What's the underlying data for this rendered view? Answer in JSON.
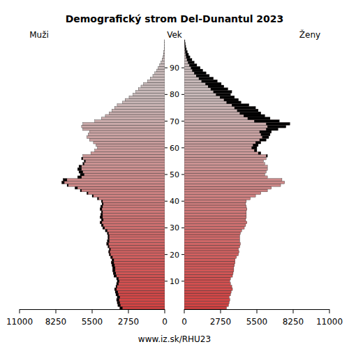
{
  "chart_data": {
    "type": "bar",
    "orientation": "horizontal",
    "title": "Demografický strom Del-Dunantul 2023",
    "y_label": "Vek",
    "footer": "www.iz.sk/RHU23",
    "categories": [
      null,
      null,
      null,
      null,
      null,
      null,
      null,
      null,
      null,
      null,
      "10",
      null,
      null,
      null,
      null,
      null,
      null,
      null,
      null,
      null,
      "20",
      null,
      null,
      null,
      null,
      null,
      null,
      null,
      null,
      null,
      "30",
      null,
      null,
      null,
      null,
      null,
      null,
      null,
      null,
      null,
      "40",
      null,
      null,
      null,
      null,
      null,
      null,
      null,
      null,
      null,
      "50",
      null,
      null,
      null,
      null,
      null,
      null,
      null,
      null,
      null,
      "60",
      null,
      null,
      null,
      null,
      null,
      null,
      null,
      null,
      null,
      "70",
      null,
      null,
      null,
      null,
      null,
      null,
      null,
      null,
      null,
      "80",
      null,
      null,
      null,
      null,
      null,
      null,
      null,
      null,
      null,
      "90",
      null,
      null,
      null,
      null,
      null,
      null,
      null,
      null,
      null,
      null
    ],
    "series": [
      {
        "name": "Muži",
        "values": [
          3400,
          3550,
          3600,
          3650,
          3600,
          3700,
          3750,
          3800,
          3700,
          3650,
          3600,
          3650,
          3850,
          3900,
          3950,
          3950,
          4000,
          4050,
          4000,
          4100,
          4200,
          4250,
          4200,
          4300,
          4400,
          4350,
          4300,
          4300,
          4350,
          4500,
          4700,
          4800,
          4900,
          4800,
          4900,
          4850,
          4800,
          4900,
          4850,
          4750,
          4800,
          5100,
          5500,
          5900,
          6400,
          6800,
          7400,
          7800,
          7700,
          6600,
          6400,
          6500,
          6600,
          6500,
          6200,
          6100,
          6300,
          6200,
          5600,
          5300,
          5100,
          5200,
          5400,
          5700,
          5900,
          5800,
          5700,
          6200,
          6300,
          6200,
          5300,
          4800,
          4500,
          4200,
          4000,
          3800,
          3600,
          3200,
          3000,
          2700,
          2400,
          2200,
          2000,
          1800,
          1600,
          1300,
          1100,
          900,
          750,
          600,
          500,
          380,
          280,
          200,
          140,
          100,
          70,
          45,
          30,
          20,
          15
        ]
      },
      {
        "name": "Ženy",
        "values": [
          3200,
          3350,
          3400,
          3450,
          3400,
          3500,
          3550,
          3650,
          3600,
          3500,
          3450,
          3500,
          3650,
          3700,
          3750,
          3750,
          3800,
          3850,
          3850,
          3950,
          4100,
          4150,
          4100,
          4200,
          4250,
          4200,
          4200,
          4200,
          4250,
          4350,
          4550,
          4650,
          4750,
          4650,
          4700,
          4700,
          4700,
          4750,
          4700,
          4650,
          4700,
          5000,
          5400,
          5800,
          6300,
          6600,
          7300,
          7600,
          7400,
          6300,
          6100,
          6200,
          6300,
          6300,
          6100,
          6000,
          6200,
          6300,
          5800,
          5500,
          5500,
          5600,
          5800,
          6200,
          6400,
          6500,
          6600,
          7100,
          7700,
          8000,
          7200,
          6500,
          6100,
          5800,
          5600,
          5400,
          4900,
          4300,
          4100,
          3800,
          3500,
          3600,
          3300,
          3000,
          2800,
          2500,
          2200,
          1900,
          1650,
          1400,
          1200,
          950,
          750,
          580,
          430,
          320,
          230,
          160,
          110,
          75,
          50
        ]
      }
    ],
    "xlim": [
      0,
      11000
    ],
    "xticks": [
      0,
      2750,
      5500,
      8250,
      11000
    ]
  }
}
